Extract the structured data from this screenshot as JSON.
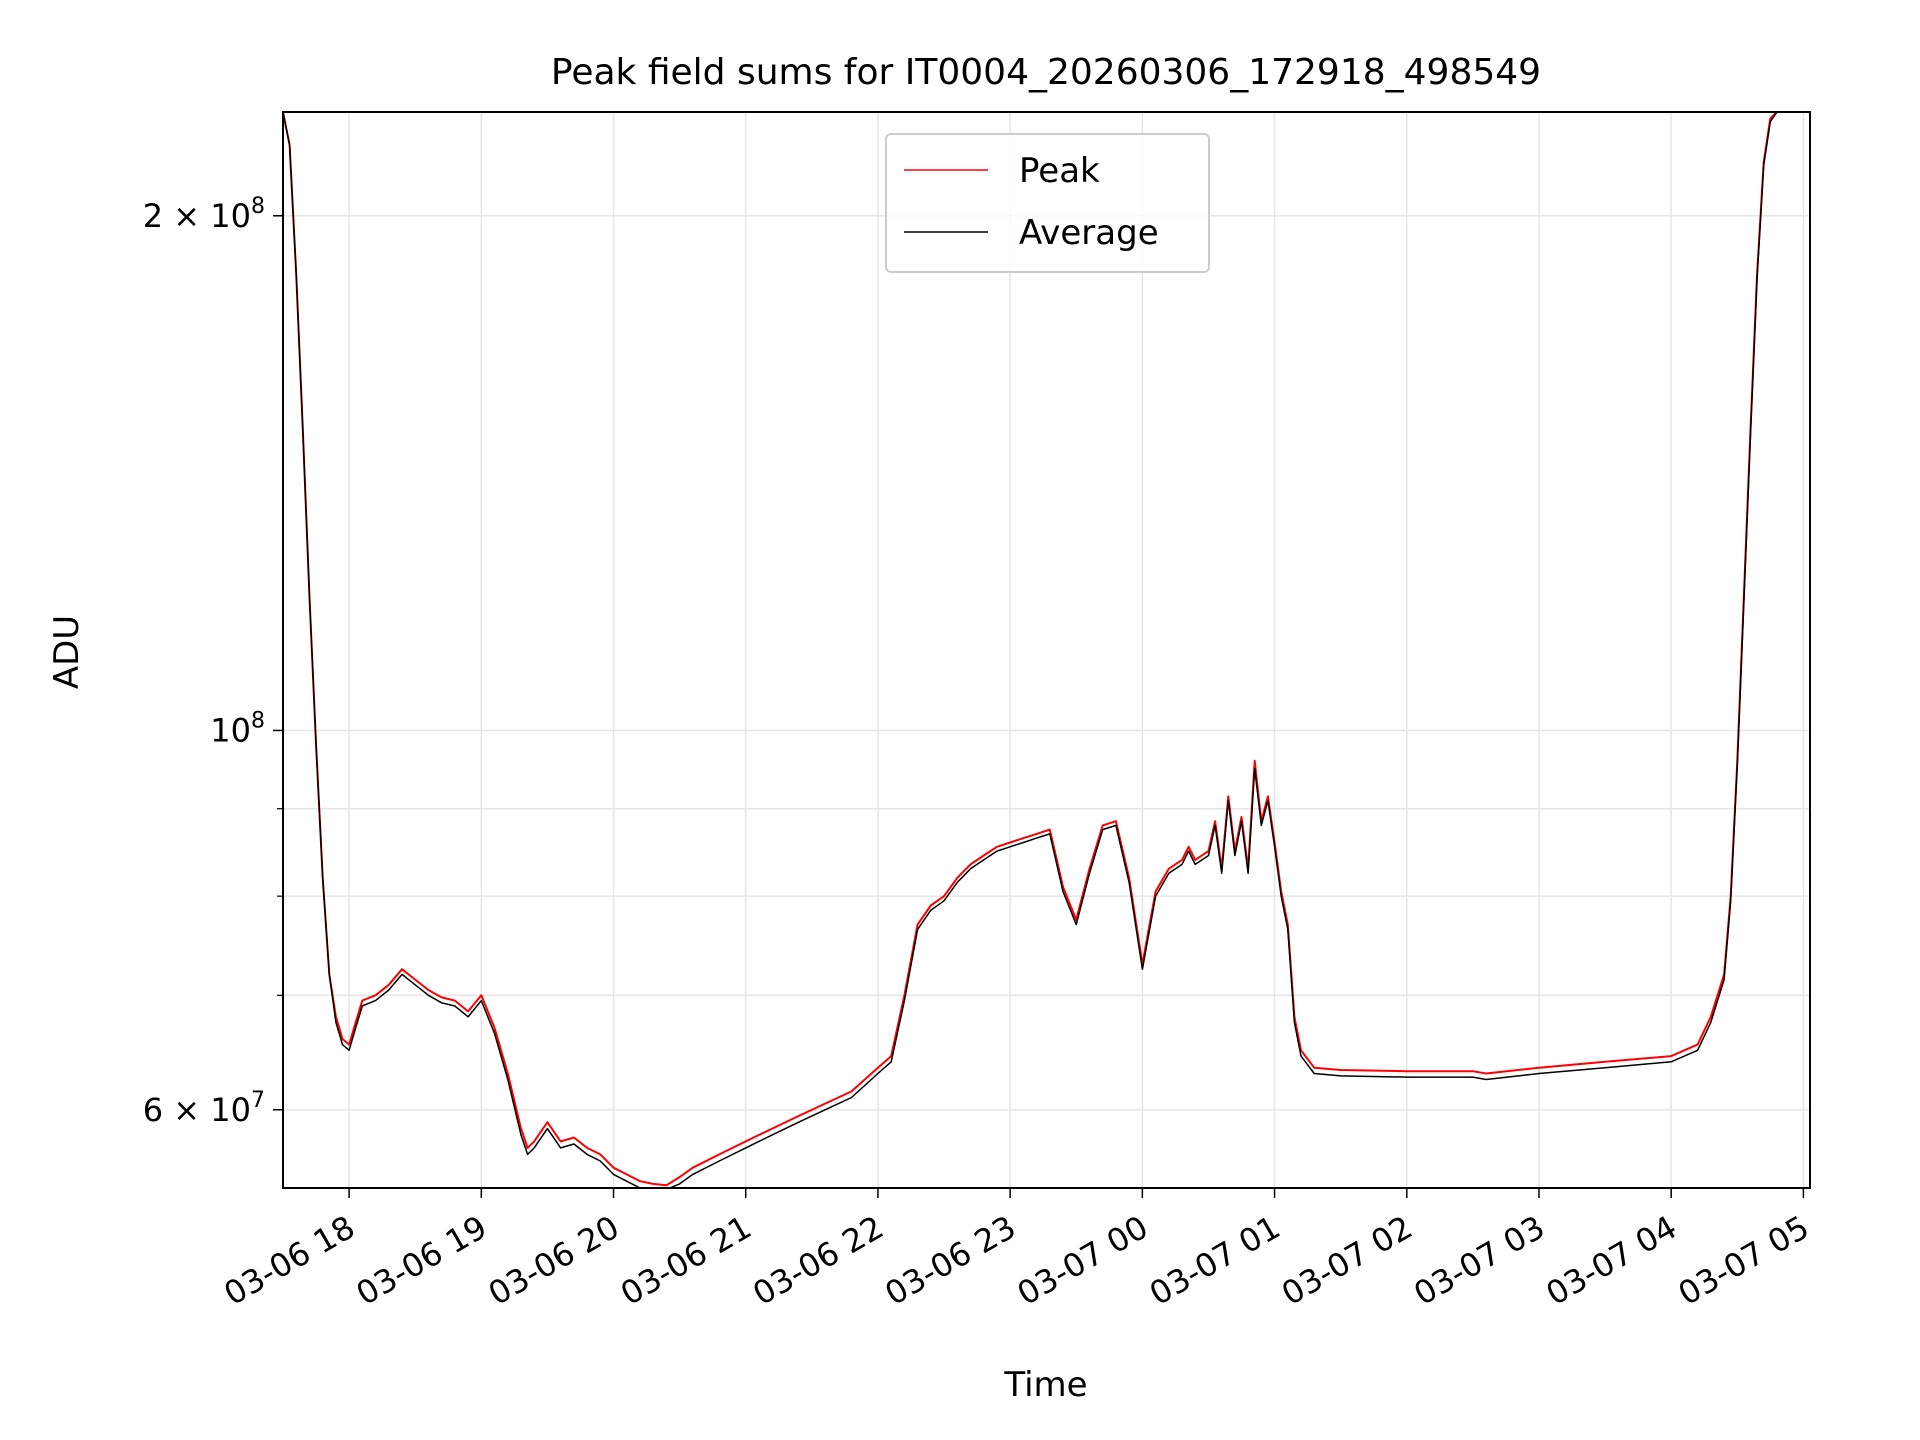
{
  "chart_data": {
    "type": "line",
    "title": "Peak field sums for IT0004_20260306_172918_498549",
    "xlabel": "Time",
    "ylabel": "ADU",
    "yscale": "log",
    "ylim": [
      54000000,
      230000000
    ],
    "xlim_hours": [
      17.5,
      29.05
    ],
    "grid": true,
    "legend_position": "upper center",
    "x_tick_hours": [
      18,
      19,
      20,
      21,
      22,
      23,
      24,
      25,
      26,
      27,
      28,
      29
    ],
    "x_tick_labels": [
      "03-06 18",
      "03-06 19",
      "03-06 20",
      "03-06 21",
      "03-06 22",
      "03-06 23",
      "03-07 00",
      "03-07 01",
      "03-07 02",
      "03-07 03",
      "03-07 04",
      "03-07 05"
    ],
    "y_major_ticks": [
      {
        "value": 200000000,
        "mantissa": "2",
        "exponent": "8"
      },
      {
        "value": 100000000,
        "mantissa": "",
        "exponent": "8"
      },
      {
        "value": 60000000,
        "mantissa": "6",
        "exponent": "7"
      }
    ],
    "y_minor_ticks": [
      70000000,
      80000000,
      90000000
    ],
    "series": [
      {
        "name": "Peak",
        "color": "#ff0000",
        "note": "x in hours since 2026-03-06 00:00 (24 = 03-07 00:00), y in ADU",
        "x": [
          17.5,
          17.55,
          17.6,
          17.65,
          17.7,
          17.75,
          17.8,
          17.85,
          17.9,
          17.95,
          18.0,
          18.05,
          18.1,
          18.2,
          18.3,
          18.4,
          18.5,
          18.6,
          18.7,
          18.8,
          18.9,
          19.0,
          19.1,
          19.2,
          19.3,
          19.35,
          19.4,
          19.5,
          19.6,
          19.7,
          19.8,
          19.9,
          20.0,
          20.1,
          20.2,
          20.3,
          20.4,
          20.5,
          20.6,
          20.8,
          21.0,
          21.2,
          21.4,
          21.6,
          21.8,
          22.0,
          22.1,
          22.2,
          22.3,
          22.4,
          22.5,
          22.6,
          22.7,
          22.8,
          22.9,
          23.0,
          23.1,
          23.2,
          23.3,
          23.4,
          23.5,
          23.6,
          23.7,
          23.8,
          23.9,
          24.0,
          24.1,
          24.2,
          24.3,
          24.35,
          24.4,
          24.5,
          24.55,
          24.6,
          24.65,
          24.7,
          24.75,
          24.8,
          24.85,
          24.9,
          24.95,
          25.0,
          25.05,
          25.1,
          25.15,
          25.2,
          25.3,
          25.5,
          26.0,
          26.5,
          26.6,
          27.0,
          27.5,
          28.0,
          28.2,
          28.3,
          28.4,
          28.45,
          28.5,
          28.55,
          28.6,
          28.65,
          28.7,
          28.75,
          28.8,
          28.85,
          28.9
        ],
        "y": [
          230000000,
          220000000,
          185000000,
          150000000,
          120000000,
          98000000,
          82000000,
          72000000,
          68000000,
          66000000,
          65500000,
          67500000,
          69500000,
          70000000,
          71000000,
          72500000,
          71500000,
          70500000,
          69800000,
          69500000,
          68500000,
          70000000,
          67000000,
          63000000,
          58500000,
          57000000,
          57500000,
          59000000,
          57500000,
          57800000,
          57000000,
          56500000,
          55500000,
          55000000,
          54500000,
          54300000,
          54200000,
          54800000,
          55500000,
          56500000,
          57500000,
          58500000,
          59500000,
          60500000,
          61500000,
          63500000,
          64500000,
          70000000,
          77000000,
          79000000,
          80000000,
          82000000,
          83500000,
          84500000,
          85500000,
          86000000,
          86500000,
          87000000,
          87500000,
          81000000,
          77500000,
          83000000,
          88000000,
          88500000,
          82000000,
          73000000,
          80500000,
          83000000,
          84000000,
          85500000,
          84000000,
          85000000,
          88500000,
          83000000,
          91500000,
          85000000,
          89000000,
          83000000,
          96000000,
          88500000,
          91500000,
          86000000,
          80500000,
          77000000,
          68000000,
          65000000,
          63500000,
          63300000,
          63200000,
          63200000,
          63000000,
          63500000,
          64000000,
          64500000,
          65500000,
          68000000,
          72000000,
          80000000,
          96000000,
          120000000,
          150000000,
          185000000,
          215000000,
          228000000,
          230000000,
          230000000,
          230000000
        ]
      },
      {
        "name": "Average",
        "color": "#000000",
        "note": "x in hours since 2026-03-06 00:00 (24 = 03-07 00:00), y in ADU",
        "x": [
          17.5,
          17.55,
          17.6,
          17.65,
          17.7,
          17.75,
          17.8,
          17.85,
          17.9,
          17.95,
          18.0,
          18.05,
          18.1,
          18.2,
          18.3,
          18.4,
          18.5,
          18.6,
          18.7,
          18.8,
          18.9,
          19.0,
          19.1,
          19.2,
          19.3,
          19.35,
          19.4,
          19.5,
          19.6,
          19.7,
          19.8,
          19.9,
          20.0,
          20.1,
          20.2,
          20.3,
          20.4,
          20.5,
          20.6,
          20.8,
          21.0,
          21.2,
          21.4,
          21.6,
          21.8,
          22.0,
          22.1,
          22.2,
          22.3,
          22.4,
          22.5,
          22.6,
          22.7,
          22.8,
          22.9,
          23.0,
          23.1,
          23.2,
          23.3,
          23.4,
          23.5,
          23.6,
          23.7,
          23.8,
          23.9,
          24.0,
          24.1,
          24.2,
          24.3,
          24.35,
          24.4,
          24.5,
          24.55,
          24.6,
          24.65,
          24.7,
          24.75,
          24.8,
          24.85,
          24.9,
          24.95,
          25.0,
          25.05,
          25.1,
          25.15,
          25.2,
          25.3,
          25.5,
          26.0,
          26.5,
          26.6,
          27.0,
          27.5,
          28.0,
          28.2,
          28.3,
          28.4,
          28.45,
          28.5,
          28.55,
          28.6,
          28.65,
          28.7,
          28.75,
          28.8,
          28.85,
          28.9
        ],
        "y": [
          230000000,
          220000000,
          185000000,
          150000000,
          120000000,
          98000000,
          82000000,
          72000000,
          67500000,
          65500000,
          65000000,
          67000000,
          69000000,
          69500000,
          70500000,
          72000000,
          71000000,
          70000000,
          69300000,
          69000000,
          68000000,
          69500000,
          66500000,
          62500000,
          58000000,
          56500000,
          57000000,
          58500000,
          57000000,
          57300000,
          56500000,
          56000000,
          55000000,
          54500000,
          54000000,
          53900000,
          53900000,
          54300000,
          55000000,
          56000000,
          57000000,
          58000000,
          59000000,
          60000000,
          61000000,
          63000000,
          64000000,
          69500000,
          76500000,
          78500000,
          79500000,
          81500000,
          83000000,
          84000000,
          85000000,
          85500000,
          86000000,
          86500000,
          87000000,
          80500000,
          77000000,
          82500000,
          87500000,
          88000000,
          81500000,
          72500000,
          80000000,
          82500000,
          83500000,
          85000000,
          83500000,
          84500000,
          88000000,
          82500000,
          91000000,
          84500000,
          88500000,
          82500000,
          95000000,
          88000000,
          91000000,
          85500000,
          80000000,
          76500000,
          67500000,
          64500000,
          63000000,
          62800000,
          62700000,
          62700000,
          62500000,
          63000000,
          63500000,
          64000000,
          65000000,
          67500000,
          71500000,
          79500000,
          95500000,
          119000000,
          149000000,
          184000000,
          214000000,
          227000000,
          230000000,
          230000000,
          230000000
        ]
      }
    ]
  }
}
